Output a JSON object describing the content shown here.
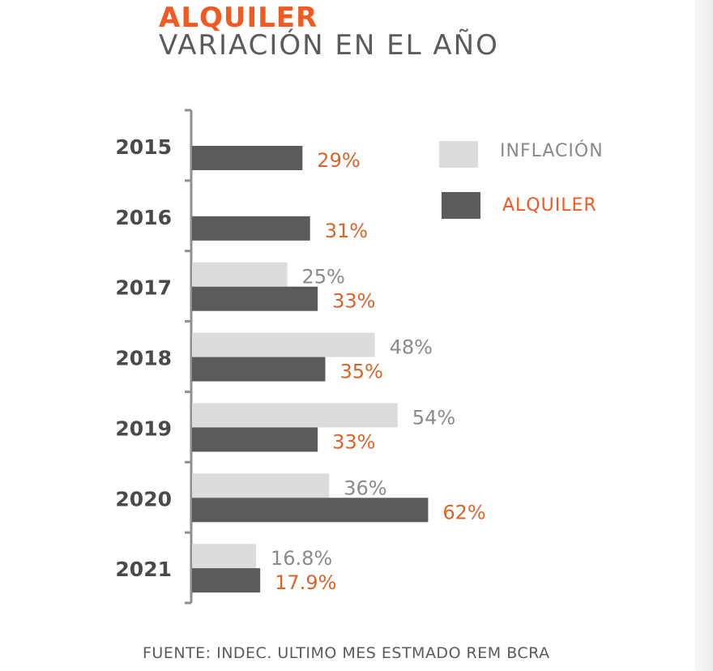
{
  "header": {
    "title": "ALQUILER",
    "subtitle": "VARIACIÓN EN EL AÑO"
  },
  "source": "FUENTE: INDEC. ULTIMO MES ESTMADO REM BCRA",
  "legend": {
    "inflation_label": "INFLACIÓN",
    "rent_label": "ALQUILER"
  },
  "colors": {
    "inflation": "#dcdcdc",
    "rent": "#5b5b5b",
    "accent": "#f05a22",
    "rent_value_text": "#d9652c",
    "inflation_value_text": "#8a8a8a",
    "axis": "#8f8f8f",
    "year_text": "#4a4a4a"
  },
  "chart_data": {
    "type": "bar",
    "orientation": "horizontal",
    "categories": [
      "2015",
      "2016",
      "2017",
      "2018",
      "2019",
      "2020",
      "2021"
    ],
    "series": [
      {
        "name": "INFLACIÓN",
        "values": [
          null,
          null,
          25,
          48,
          54,
          36,
          16.8
        ],
        "labels": [
          "",
          "",
          "25%",
          "48%",
          "54%",
          "36%",
          "16.8%"
        ]
      },
      {
        "name": "ALQUILER",
        "values": [
          29,
          31,
          33,
          35,
          33,
          62,
          17.9
        ],
        "labels": [
          "29%",
          "31%",
          "33%",
          "35%",
          "33%",
          "62%",
          "17.9%"
        ]
      }
    ],
    "title": "",
    "xlabel": "",
    "ylabel": "",
    "grid": false,
    "legend_position": "top-right"
  }
}
